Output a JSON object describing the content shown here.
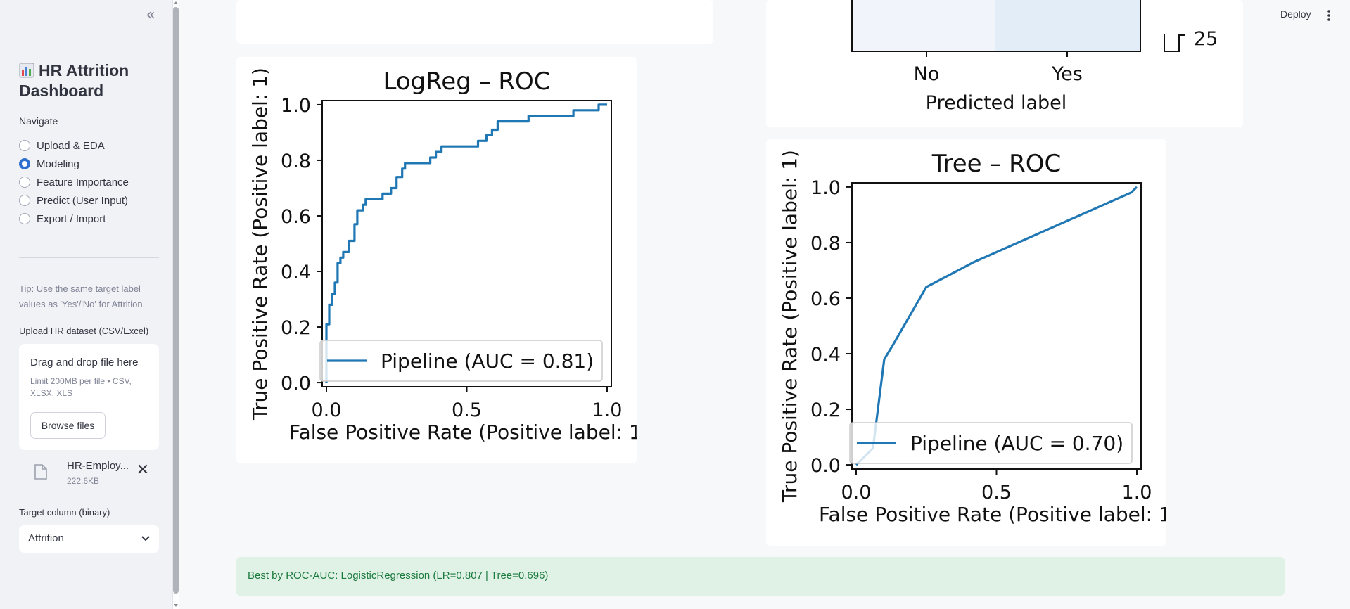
{
  "header": {
    "deploy_label": "Deploy",
    "menu_icon": "vertical-ellipsis-icon"
  },
  "sidebar": {
    "collapse_icon": "double-chevron-left-icon",
    "title": "HR Attrition Dashboard",
    "title_icon": "bar-chart-emoji-icon",
    "navigate_label": "Navigate",
    "nav_items": [
      {
        "label": "Upload & EDA",
        "selected": false
      },
      {
        "label": "Modeling",
        "selected": true
      },
      {
        "label": "Feature Importance",
        "selected": false
      },
      {
        "label": "Predict (User Input)",
        "selected": false
      },
      {
        "label": "Export / Import",
        "selected": false
      }
    ],
    "tip": "Tip: Use the same target label values as 'Yes'/'No' for Attrition.",
    "upload_label": "Upload HR dataset (CSV/Excel)",
    "dropzone": {
      "title": "Drag and drop file here",
      "limit": "Limit 200MB per file • CSV, XLSX, XLS",
      "browse_label": "Browse files"
    },
    "file": {
      "name": "HR-Employ...",
      "size": "222.6KB"
    },
    "target_label": "Target column (binary)",
    "target_value": "Attrition",
    "accent_color": "#2f6fcf"
  },
  "confusion_fragment": {
    "tick_labels": [
      "No",
      "Yes"
    ],
    "xlabel": "Predicted label",
    "colorbar_tick": "25"
  },
  "chart_data": [
    {
      "type": "line",
      "title": "LogReg – ROC",
      "xlabel": "False Positive Rate (Positive label: 1",
      "ylabel": "True Positive Rate (Positive label: 1)",
      "xlim": [
        0,
        1
      ],
      "ylim": [
        0,
        1
      ],
      "x_ticks": [
        "0.0",
        "0.5",
        "1.0"
      ],
      "y_ticks": [
        "0.0",
        "0.2",
        "0.4",
        "0.6",
        "0.8",
        "1.0"
      ],
      "legend_position": "lower-right",
      "series": [
        {
          "name": "Pipeline (AUC = 0.81)",
          "color": "#1f77b4",
          "x": [
            0.0,
            0.0,
            0.01,
            0.01,
            0.02,
            0.02,
            0.03,
            0.03,
            0.04,
            0.04,
            0.05,
            0.05,
            0.06,
            0.06,
            0.08,
            0.08,
            0.1,
            0.1,
            0.11,
            0.11,
            0.13,
            0.13,
            0.14,
            0.14,
            0.2,
            0.2,
            0.23,
            0.23,
            0.25,
            0.25,
            0.27,
            0.27,
            0.28,
            0.28,
            0.37,
            0.37,
            0.39,
            0.39,
            0.41,
            0.41,
            0.54,
            0.54,
            0.57,
            0.57,
            0.59,
            0.59,
            0.61,
            0.61,
            0.72,
            0.72,
            0.88,
            0.88,
            0.97,
            0.97,
            1.0
          ],
          "y": [
            0.0,
            0.21,
            0.21,
            0.28,
            0.28,
            0.32,
            0.32,
            0.36,
            0.36,
            0.43,
            0.43,
            0.45,
            0.45,
            0.47,
            0.47,
            0.51,
            0.51,
            0.57,
            0.57,
            0.62,
            0.62,
            0.64,
            0.64,
            0.66,
            0.66,
            0.68,
            0.68,
            0.7,
            0.7,
            0.74,
            0.74,
            0.77,
            0.77,
            0.79,
            0.79,
            0.81,
            0.81,
            0.83,
            0.83,
            0.85,
            0.85,
            0.87,
            0.87,
            0.89,
            0.89,
            0.91,
            0.91,
            0.94,
            0.94,
            0.96,
            0.96,
            0.98,
            0.98,
            1.0,
            1.0
          ]
        }
      ]
    },
    {
      "type": "line",
      "title": "Tree – ROC",
      "xlabel": "False Positive Rate (Positive label: 1",
      "ylabel": "True Positive Rate (Positive label: 1)",
      "xlim": [
        0,
        1
      ],
      "ylim": [
        0,
        1
      ],
      "x_ticks": [
        "0.0",
        "0.5",
        "1.0"
      ],
      "y_ticks": [
        "0.0",
        "0.2",
        "0.4",
        "0.6",
        "0.8",
        "1.0"
      ],
      "legend_position": "lower-right",
      "series": [
        {
          "name": "Pipeline (AUC = 0.70)",
          "color": "#1f77b4",
          "x": [
            0.0,
            0.06,
            0.1,
            0.13,
            0.25,
            0.42,
            0.98,
            1.0
          ],
          "y": [
            0.0,
            0.06,
            0.38,
            0.43,
            0.64,
            0.73,
            0.98,
            1.0
          ]
        }
      ]
    }
  ],
  "status": {
    "message": "Best by ROC-AUC: LogisticRegression (LR=0.807 | Tree=0.696)",
    "color": "#1b7a3e"
  }
}
